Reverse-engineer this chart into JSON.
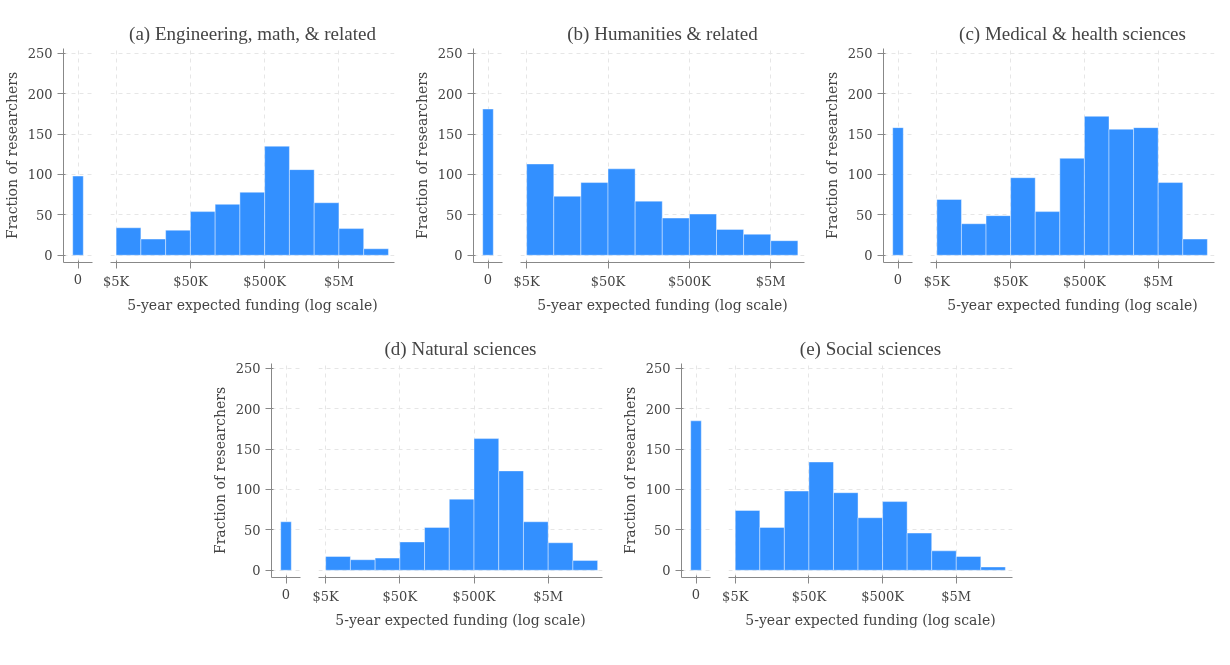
{
  "chart_data": [
    {
      "type": "bar",
      "ylabel": "Fraction of researchers",
      "categories": [
        "0"
      ],
      "values": [
        98
      ],
      "color": "#3390ff",
      "ylim": [
        -9,
        256
      ],
      "yticks": [
        0,
        50,
        100,
        150,
        200,
        250
      ],
      "grid": true
    },
    {
      "type": "histogram",
      "title": "(a) Engineering, math, & related",
      "xlabel": "5-year expected funding (log scale)",
      "bins": [
        5000,
        10772,
        23208,
        50000,
        107722,
        232079,
        500000,
        1077217,
        2320794,
        5000000,
        10772173,
        23207944
      ],
      "values": [
        34,
        20,
        31,
        54,
        63,
        78,
        135,
        106,
        65,
        33,
        8
      ],
      "color": "#3390ff",
      "log": "x",
      "xlim": [
        4200,
        28000000
      ],
      "xticks": [
        {
          "value": 5000,
          "label": "$5K"
        },
        {
          "value": 50000,
          "label": "$50K"
        },
        {
          "value": 500000,
          "label": "$500K"
        },
        {
          "value": 5000000,
          "label": "$5M"
        }
      ],
      "ylim": [
        -9,
        256
      ],
      "yticks": [
        0,
        50,
        100,
        150,
        200,
        250
      ],
      "tick_labels": "x",
      "grid": true
    },
    {
      "type": "bar",
      "ylabel": "Fraction of researchers",
      "categories": [
        "0"
      ],
      "values": [
        181
      ],
      "color": "#3390ff",
      "ylim": [
        -9,
        256
      ],
      "yticks": [
        0,
        50,
        100,
        150,
        200,
        250
      ],
      "grid": true
    },
    {
      "type": "histogram",
      "title": "(b) Humanities & related",
      "xlabel": "5-year expected funding (log scale)",
      "bins": [
        5000,
        10772,
        23208,
        50000,
        107722,
        232079,
        500000,
        1077217,
        2320794,
        5000000,
        10772173
      ],
      "values": [
        113,
        73,
        90,
        107,
        67,
        46,
        51,
        32,
        26,
        18
      ],
      "color": "#3390ff",
      "log": "x",
      "xlim": [
        4200,
        13000000
      ],
      "xticks": [
        {
          "value": 5000,
          "label": "$5K"
        },
        {
          "value": 50000,
          "label": "$50K"
        },
        {
          "value": 500000,
          "label": "$500K"
        },
        {
          "value": 5000000,
          "label": "$5M"
        }
      ],
      "ylim": [
        -9,
        256
      ],
      "yticks": [
        0,
        50,
        100,
        150,
        200,
        250
      ],
      "tick_labels": "x",
      "grid": true
    },
    {
      "type": "bar",
      "ylabel": "Fraction of researchers",
      "categories": [
        "0"
      ],
      "values": [
        158
      ],
      "color": "#3390ff",
      "ylim": [
        -9,
        256
      ],
      "yticks": [
        0,
        50,
        100,
        150,
        200,
        250
      ],
      "grid": true
    },
    {
      "type": "histogram",
      "title": "(c) Medical & health sciences",
      "xlabel": "5-year expected funding (log scale)",
      "bins": [
        5000,
        10772,
        23208,
        50000,
        107722,
        232079,
        500000,
        1077217,
        2320794,
        5000000,
        10772173,
        23207944
      ],
      "values": [
        69,
        39,
        49,
        96,
        54,
        120,
        172,
        156,
        158,
        90,
        20
      ],
      "color": "#3390ff",
      "log": "x",
      "xlim": [
        4100,
        29000000
      ],
      "xticks": [
        {
          "value": 5000,
          "label": "$5K"
        },
        {
          "value": 50000,
          "label": "$50K"
        },
        {
          "value": 500000,
          "label": "$500K"
        },
        {
          "value": 5000000,
          "label": "$5M"
        }
      ],
      "ylim": [
        -9,
        256
      ],
      "yticks": [
        0,
        50,
        100,
        150,
        200,
        250
      ],
      "tick_labels": "x",
      "grid": true
    },
    {
      "type": "bar",
      "ylabel": "Fraction of researchers",
      "categories": [
        "0"
      ],
      "values": [
        60
      ],
      "color": "#3390ff",
      "ylim": [
        -9,
        256
      ],
      "yticks": [
        0,
        50,
        100,
        150,
        200,
        250
      ],
      "grid": true
    },
    {
      "type": "histogram",
      "title": "(d) Natural sciences",
      "xlabel": "5-year expected funding (log scale)",
      "bins": [
        5000,
        10772,
        23208,
        50000,
        107722,
        232079,
        500000,
        1077217,
        2320794,
        5000000,
        10772173,
        23207944
      ],
      "values": [
        17,
        13,
        15,
        35,
        53,
        88,
        163,
        123,
        60,
        34,
        12
      ],
      "color": "#3390ff",
      "log": "x",
      "xlim": [
        4000,
        27000000
      ],
      "xticks": [
        {
          "value": 5000,
          "label": "$5K"
        },
        {
          "value": 50000,
          "label": "$50K"
        },
        {
          "value": 500000,
          "label": "$500K"
        },
        {
          "value": 5000000,
          "label": "$5M"
        }
      ],
      "ylim": [
        -9,
        256
      ],
      "yticks": [
        0,
        50,
        100,
        150,
        200,
        250
      ],
      "tick_labels": "x",
      "grid": true
    },
    {
      "type": "bar",
      "ylabel": "Fraction of researchers",
      "categories": [
        "0"
      ],
      "values": [
        185
      ],
      "color": "#3390ff",
      "ylim": [
        -9,
        256
      ],
      "yticks": [
        0,
        50,
        100,
        150,
        200,
        250
      ],
      "grid": true
    },
    {
      "type": "histogram",
      "title": "(e) Social sciences",
      "xlabel": "5-year expected funding (log scale)",
      "bins": [
        5000,
        10772,
        23208,
        50000,
        107722,
        232079,
        500000,
        1077217,
        2320794,
        5000000,
        10772173,
        23207944
      ],
      "values": [
        74,
        53,
        98,
        134,
        96,
        65,
        85,
        46,
        24,
        17,
        4
      ],
      "color": "#3390ff",
      "log": "x",
      "xlim": [
        4050,
        29000000
      ],
      "xticks": [
        {
          "value": 5000,
          "label": "$5K"
        },
        {
          "value": 50000,
          "label": "$50K"
        },
        {
          "value": 500000,
          "label": "$500K"
        },
        {
          "value": 5000000,
          "label": "$5M"
        }
      ],
      "ylim": [
        -9,
        256
      ],
      "yticks": [
        0,
        50,
        100,
        150,
        200,
        250
      ],
      "tick_labels": "x",
      "grid": true
    }
  ]
}
